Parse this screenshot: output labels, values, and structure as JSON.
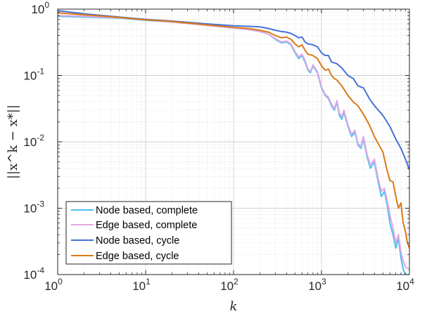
{
  "chart_data": {
    "type": "line",
    "xscale": "log",
    "yscale": "log",
    "xlim": [
      1,
      10000
    ],
    "ylim": [
      0.0001,
      1
    ],
    "grid": true,
    "minor_grid": true,
    "legend_position": "bottom-left",
    "xlabel": "k",
    "ylabel": "||x^k − x*||",
    "x_ticks": [
      {
        "value": 1,
        "base": "10",
        "exp": "0"
      },
      {
        "value": 10,
        "base": "10",
        "exp": "1"
      },
      {
        "value": 100,
        "base": "10",
        "exp": "2"
      },
      {
        "value": 1000,
        "base": "10",
        "exp": "3"
      },
      {
        "value": 10000,
        "base": "10",
        "exp": "4"
      }
    ],
    "y_ticks": [
      {
        "value": 1,
        "base": "10",
        "exp": "0"
      },
      {
        "value": 0.1,
        "base": "10",
        "exp": "-1"
      },
      {
        "value": 0.01,
        "base": "10",
        "exp": "-2"
      },
      {
        "value": 0.001,
        "base": "10",
        "exp": "-3"
      },
      {
        "value": 0.0001,
        "base": "10",
        "exp": "-4"
      }
    ],
    "series": [
      {
        "name": "Node based, complete",
        "color": "#4dbeee",
        "points": [
          [
            1,
            0.78
          ],
          [
            2,
            0.76
          ],
          [
            5,
            0.73
          ],
          [
            10,
            0.68
          ],
          [
            20,
            0.64
          ],
          [
            50,
            0.57
          ],
          [
            100,
            0.52
          ],
          [
            150,
            0.49
          ],
          [
            200,
            0.46
          ],
          [
            250,
            0.42
          ],
          [
            300,
            0.35
          ],
          [
            350,
            0.31
          ],
          [
            400,
            0.32
          ],
          [
            450,
            0.29
          ],
          [
            500,
            0.22
          ],
          [
            550,
            0.18
          ],
          [
            600,
            0.2
          ],
          [
            650,
            0.16
          ],
          [
            700,
            0.12
          ],
          [
            750,
            0.11
          ],
          [
            800,
            0.14
          ],
          [
            900,
            0.11
          ],
          [
            1000,
            0.065
          ],
          [
            1100,
            0.05
          ],
          [
            1200,
            0.045
          ],
          [
            1300,
            0.035
          ],
          [
            1400,
            0.03
          ],
          [
            1500,
            0.04
          ],
          [
            1600,
            0.025
          ],
          [
            1700,
            0.022
          ],
          [
            1800,
            0.028
          ],
          [
            2000,
            0.017
          ],
          [
            2200,
            0.012
          ],
          [
            2400,
            0.014
          ],
          [
            2600,
            0.009
          ],
          [
            2800,
            0.008
          ],
          [
            3000,
            0.011
          ],
          [
            3300,
            0.006
          ],
          [
            3600,
            0.004
          ],
          [
            4000,
            0.005
          ],
          [
            4400,
            0.0025
          ],
          [
            4800,
            0.0015
          ],
          [
            5200,
            0.0018
          ],
          [
            5600,
            0.0011
          ],
          [
            6000,
            0.0006
          ],
          [
            6500,
            0.0004
          ],
          [
            7000,
            0.00025
          ],
          [
            7500,
            0.00035
          ],
          [
            8000,
            0.00018
          ],
          [
            8500,
            0.00012
          ],
          [
            9000,
            0.0001
          ],
          [
            10000,
            0.0001
          ]
        ]
      },
      {
        "name": "Edge based, complete",
        "color": "#e2a9e5",
        "points": [
          [
            1,
            0.8
          ],
          [
            2,
            0.78
          ],
          [
            5,
            0.74
          ],
          [
            10,
            0.69
          ],
          [
            20,
            0.64
          ],
          [
            50,
            0.57
          ],
          [
            100,
            0.52
          ],
          [
            150,
            0.49
          ],
          [
            200,
            0.46
          ],
          [
            250,
            0.42
          ],
          [
            300,
            0.36
          ],
          [
            350,
            0.32
          ],
          [
            400,
            0.33
          ],
          [
            450,
            0.3
          ],
          [
            500,
            0.23
          ],
          [
            550,
            0.19
          ],
          [
            600,
            0.21
          ],
          [
            650,
            0.17
          ],
          [
            700,
            0.125
          ],
          [
            750,
            0.115
          ],
          [
            800,
            0.145
          ],
          [
            900,
            0.115
          ],
          [
            1000,
            0.068
          ],
          [
            1100,
            0.052
          ],
          [
            1200,
            0.047
          ],
          [
            1300,
            0.037
          ],
          [
            1400,
            0.032
          ],
          [
            1500,
            0.042
          ],
          [
            1600,
            0.027
          ],
          [
            1700,
            0.024
          ],
          [
            1800,
            0.03
          ],
          [
            2000,
            0.018
          ],
          [
            2200,
            0.013
          ],
          [
            2400,
            0.015
          ],
          [
            2600,
            0.0095
          ],
          [
            2800,
            0.0085
          ],
          [
            3000,
            0.012
          ],
          [
            3300,
            0.0065
          ],
          [
            3600,
            0.0045
          ],
          [
            4000,
            0.0055
          ],
          [
            4400,
            0.0028
          ],
          [
            4800,
            0.0018
          ],
          [
            5200,
            0.002
          ],
          [
            5600,
            0.0013
          ],
          [
            6000,
            0.0008
          ],
          [
            6500,
            0.0005
          ],
          [
            7000,
            0.0003
          ],
          [
            7500,
            0.0004
          ],
          [
            8000,
            0.00022
          ],
          [
            8500,
            0.00016
          ],
          [
            9000,
            0.00013
          ],
          [
            10000,
            0.00012
          ]
        ]
      },
      {
        "name": "Node based, cycle",
        "color": "#4472d6",
        "points": [
          [
            1,
            0.95
          ],
          [
            2,
            0.85
          ],
          [
            5,
            0.76
          ],
          [
            10,
            0.7
          ],
          [
            20,
            0.66
          ],
          [
            50,
            0.6
          ],
          [
            100,
            0.56
          ],
          [
            150,
            0.55
          ],
          [
            200,
            0.54
          ],
          [
            250,
            0.51
          ],
          [
            300,
            0.48
          ],
          [
            350,
            0.46
          ],
          [
            400,
            0.45
          ],
          [
            450,
            0.43
          ],
          [
            500,
            0.4
          ],
          [
            550,
            0.37
          ],
          [
            600,
            0.38
          ],
          [
            650,
            0.32
          ],
          [
            700,
            0.3
          ],
          [
            800,
            0.29
          ],
          [
            900,
            0.27
          ],
          [
            1000,
            0.22
          ],
          [
            1100,
            0.2
          ],
          [
            1200,
            0.2
          ],
          [
            1300,
            0.16
          ],
          [
            1500,
            0.15
          ],
          [
            1700,
            0.13
          ],
          [
            2000,
            0.1
          ],
          [
            2300,
            0.09
          ],
          [
            2600,
            0.07
          ],
          [
            3000,
            0.065
          ],
          [
            3500,
            0.045
          ],
          [
            4000,
            0.035
          ],
          [
            5000,
            0.025
          ],
          [
            6000,
            0.017
          ],
          [
            7000,
            0.011
          ],
          [
            8000,
            0.008
          ],
          [
            9000,
            0.0055
          ],
          [
            10000,
            0.0038
          ]
        ]
      },
      {
        "name": "Edge based, cycle",
        "color": "#d97a17",
        "points": [
          [
            1,
            0.88
          ],
          [
            2,
            0.82
          ],
          [
            5,
            0.75
          ],
          [
            10,
            0.69
          ],
          [
            20,
            0.65
          ],
          [
            50,
            0.58
          ],
          [
            100,
            0.53
          ],
          [
            150,
            0.51
          ],
          [
            200,
            0.48
          ],
          [
            250,
            0.45
          ],
          [
            300,
            0.4
          ],
          [
            350,
            0.37
          ],
          [
            400,
            0.38
          ],
          [
            450,
            0.35
          ],
          [
            500,
            0.3
          ],
          [
            550,
            0.27
          ],
          [
            600,
            0.29
          ],
          [
            650,
            0.24
          ],
          [
            700,
            0.21
          ],
          [
            800,
            0.2
          ],
          [
            900,
            0.18
          ],
          [
            1000,
            0.14
          ],
          [
            1100,
            0.12
          ],
          [
            1200,
            0.125
          ],
          [
            1300,
            0.1
          ],
          [
            1400,
            0.09
          ],
          [
            1500,
            0.085
          ],
          [
            1700,
            0.07
          ],
          [
            2000,
            0.05
          ],
          [
            2300,
            0.04
          ],
          [
            2600,
            0.035
          ],
          [
            3000,
            0.026
          ],
          [
            3500,
            0.018
          ],
          [
            4000,
            0.012
          ],
          [
            4500,
            0.009
          ],
          [
            5000,
            0.007
          ],
          [
            5500,
            0.004
          ],
          [
            6000,
            0.0026
          ],
          [
            6500,
            0.0025
          ],
          [
            7000,
            0.0015
          ],
          [
            7500,
            0.001
          ],
          [
            8000,
            0.0012
          ],
          [
            8500,
            0.0006
          ],
          [
            9000,
            0.00045
          ],
          [
            9500,
            0.0003
          ],
          [
            10000,
            0.00025
          ]
        ]
      }
    ]
  }
}
